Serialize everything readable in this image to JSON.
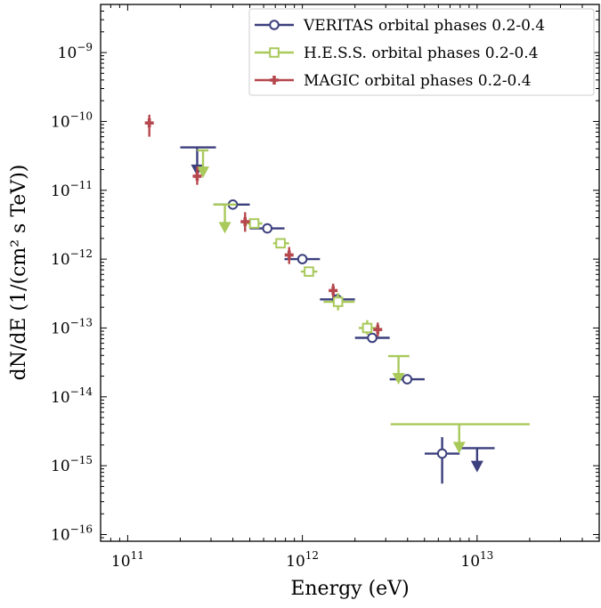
{
  "chart_data": {
    "type": "scatter",
    "xlabel": "Energy (eV)",
    "ylabel": "dN/dE (1/(cm² s TeV))",
    "x_scale": "log",
    "y_scale": "log",
    "xlim": [
      70000000000,
      50000000000000
    ],
    "ylim": [
      8e-17,
      5e-09
    ],
    "x_ticks": [
      {
        "value": 100000000000,
        "base": "10",
        "exp": "11"
      },
      {
        "value": 1000000000000,
        "base": "10",
        "exp": "12"
      },
      {
        "value": 10000000000000,
        "base": "10",
        "exp": "13"
      }
    ],
    "y_ticks": [
      {
        "value": 1e-09,
        "base": "10",
        "exp": "−9"
      },
      {
        "value": 1e-10,
        "base": "10",
        "exp": "−10"
      },
      {
        "value": 1e-11,
        "base": "10",
        "exp": "−11"
      },
      {
        "value": 1e-12,
        "base": "10",
        "exp": "−12"
      },
      {
        "value": 1e-13,
        "base": "10",
        "exp": "−13"
      },
      {
        "value": 1e-14,
        "base": "10",
        "exp": "−14"
      },
      {
        "value": 1e-15,
        "base": "10",
        "exp": "−15"
      },
      {
        "value": 1e-16,
        "base": "10",
        "exp": "−16"
      }
    ],
    "legend_position": "top-right",
    "series": [
      {
        "name": "VERITAS orbital phases 0.2-0.4",
        "color": "#3b3f7d",
        "marker": "circle",
        "points": [
          {
            "x": 400000000000,
            "xerr": [
              310000000000,
              500000000000
            ],
            "y": 6.2e-12
          },
          {
            "x": 630000000000,
            "xerr": [
              500000000000,
              790000000000
            ],
            "y": 2.8e-12
          },
          {
            "x": 1000000000000,
            "xerr": [
              790000000000,
              1260000000000
            ],
            "y": 1e-12
          },
          {
            "x": 1580000000000,
            "xerr": [
              1260000000000,
              2000000000000
            ],
            "y": 2.6e-13
          },
          {
            "x": 2510000000000,
            "xerr": [
              2000000000000,
              3160000000000
            ],
            "y": 7.2e-14
          },
          {
            "x": 3980000000000,
            "xerr": [
              3160000000000,
              5010000000000
            ],
            "y": 1.8e-14
          },
          {
            "x": 6310000000000,
            "xerr": [
              5010000000000,
              7940000000000
            ],
            "y": 1.5e-15,
            "yerr": [
              5.5e-16,
              2.6e-15
            ]
          }
        ],
        "upper_limits": [
          {
            "x": 250000000000,
            "xerr": [
              200000000000,
              320000000000
            ],
            "y": 4.2e-11,
            "arrow_to": 1.7e-11
          },
          {
            "x": 10000000000000,
            "xerr": [
              7940000000000,
              12600000000000
            ],
            "y": 1.8e-15,
            "arrow_to": 8.5e-16
          }
        ]
      },
      {
        "name": "H.E.S.S. orbital phases 0.2-0.4",
        "color": "#a9c95b",
        "marker": "square",
        "points": [
          {
            "x": 530000000000,
            "xerr": [
              480000000000,
              590000000000
            ],
            "y": 3.3e-12
          },
          {
            "x": 750000000000,
            "xerr": [
              680000000000,
              840000000000
            ],
            "y": 1.7e-12
          },
          {
            "x": 1090000000000,
            "xerr": [
              980000000000,
              1220000000000
            ],
            "y": 6.6e-13
          },
          {
            "x": 1600000000000,
            "xerr": [
              1320000000000,
              1990000000000
            ],
            "y": 2.4e-13,
            "yerr": [
              1.8e-13,
              3.2e-13
            ]
          },
          {
            "x": 2350000000000,
            "xerr": [
              2100000000000,
              2640000000000
            ],
            "y": 1e-13,
            "yerr": [
              8e-14,
              1.3e-13
            ]
          }
        ],
        "upper_limits": [
          {
            "x": 270000000000,
            "xerr": [
              250000000000,
              290000000000
            ],
            "y": 3.8e-11,
            "arrow_to": 1.6e-11
          },
          {
            "x": 360000000000,
            "xerr": [
              310000000000,
              420000000000
            ],
            "y": 6.2e-12,
            "arrow_to": 2.5e-12
          },
          {
            "x": 3550000000000,
            "xerr": [
              3100000000000,
              4100000000000
            ],
            "y": 3.9e-14,
            "arrow_to": 1.6e-14
          },
          {
            "x": 7900000000000,
            "xerr": [
              3200000000000,
              20000000000000
            ],
            "y": 4e-15,
            "arrow_to": 1.6e-15
          }
        ]
      },
      {
        "name": "MAGIC orbital phases 0.2-0.4",
        "color": "#b5474d",
        "marker": "plus",
        "points": [
          {
            "x": 133000000000,
            "xerr": [
              127000000000,
              139000000000
            ],
            "y": 9.5e-11,
            "yerr": [
              6e-11,
              1.25e-10
            ]
          },
          {
            "x": 250000000000,
            "xerr": [
              240000000000,
              260000000000
            ],
            "y": 1.6e-11,
            "yerr": [
              1.2e-11,
              2.2e-11
            ]
          },
          {
            "x": 470000000000,
            "xerr": [
              450000000000,
              490000000000
            ],
            "y": 3.5e-12,
            "yerr": [
              2.5e-12,
              4.8e-12
            ]
          },
          {
            "x": 840000000000,
            "xerr": [
              810000000000,
              870000000000
            ],
            "y": 1.15e-12,
            "yerr": [
              8.5e-13,
              1.5e-12
            ]
          },
          {
            "x": 1500000000000,
            "xerr": [
              1450000000000,
              1550000000000
            ],
            "y": 3.5e-13,
            "yerr": [
              2.8e-13,
              4.4e-13
            ]
          },
          {
            "x": 2700000000000,
            "xerr": [
              2610000000000,
              2790000000000
            ],
            "y": 9.5e-14,
            "yerr": [
              7.5e-14,
              1.2e-13
            ]
          }
        ]
      }
    ]
  }
}
